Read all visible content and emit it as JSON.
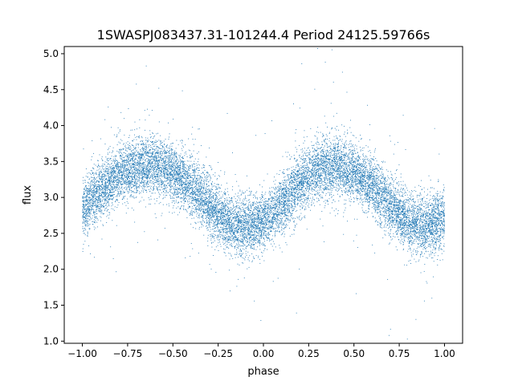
{
  "chart_data": {
    "type": "scatter",
    "title": "1SWASPJ083437.31-101244.4 Period 24125.59766s",
    "xlabel": "phase",
    "ylabel": "flux",
    "xlim": [
      -1.1,
      1.1
    ],
    "ylim": [
      0.97,
      5.1
    ],
    "x_ticks": [
      -1.0,
      -0.75,
      -0.5,
      -0.25,
      0.0,
      0.25,
      0.5,
      0.75,
      1.0
    ],
    "x_tick_labels": [
      "−1.00",
      "−0.75",
      "−0.50",
      "−0.25",
      "0.00",
      "0.25",
      "0.50",
      "0.75",
      "1.00"
    ],
    "y_ticks": [
      1.0,
      1.5,
      2.0,
      2.5,
      3.0,
      3.5,
      4.0,
      4.5,
      5.0
    ],
    "y_tick_labels": [
      "1.0",
      "1.5",
      "2.0",
      "2.5",
      "3.0",
      "3.5",
      "4.0",
      "4.5",
      "5.0"
    ],
    "grid": false,
    "marker_color": "#1f77b4",
    "phase_range": [
      -1.0,
      1.0
    ],
    "flux_trend": {
      "phase": [
        -1.0,
        -0.9,
        -0.8,
        -0.7,
        -0.6,
        -0.5,
        -0.4,
        -0.3,
        -0.2,
        -0.1,
        0.0,
        0.1,
        0.2,
        0.3,
        0.4,
        0.5,
        0.6,
        0.7,
        0.8,
        0.9,
        1.0
      ],
      "flux": [
        2.85,
        3.1,
        3.3,
        3.42,
        3.45,
        3.35,
        3.15,
        2.9,
        2.65,
        2.6,
        2.65,
        2.9,
        3.2,
        3.4,
        3.45,
        3.35,
        3.15,
        2.9,
        2.65,
        2.6,
        2.7
      ]
    },
    "flux_scatter": 0.2,
    "point_count": 14000
  }
}
